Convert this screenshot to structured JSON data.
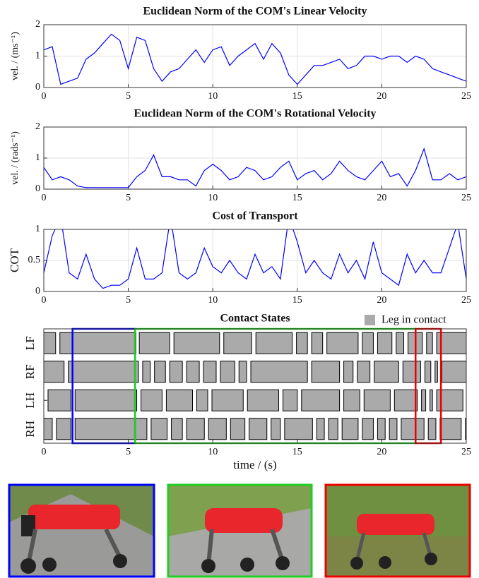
{
  "chart_data": [
    {
      "type": "line",
      "title": "Euclidean Norm of the COM's Linear Velocity",
      "y_label": "vel. / (ms⁻¹)",
      "color": "#0000ff",
      "grid": true,
      "xlim": [
        0,
        25
      ],
      "xticks": [
        0,
        5,
        10,
        15,
        20,
        25
      ],
      "ylim": [
        0,
        2
      ],
      "yticks": [
        0,
        1,
        2
      ],
      "x": [
        0,
        0.5,
        1,
        1.5,
        2,
        2.5,
        3,
        3.5,
        4,
        4.5,
        5,
        5.5,
        6,
        6.5,
        7,
        7.5,
        8,
        8.5,
        9,
        9.5,
        10,
        10.5,
        11,
        11.5,
        12,
        12.5,
        13,
        13.5,
        14,
        14.5,
        15,
        15.5,
        16,
        16.5,
        17,
        17.5,
        18,
        18.5,
        19,
        19.5,
        20,
        20.5,
        21,
        21.5,
        22,
        22.5,
        23,
        23.5,
        24,
        24.5,
        25
      ],
      "values": [
        1.2,
        1.3,
        0.1,
        0.2,
        0.3,
        0.9,
        1.1,
        1.4,
        1.7,
        1.5,
        0.6,
        1.6,
        1.5,
        0.6,
        0.2,
        0.5,
        0.6,
        0.9,
        1.2,
        0.8,
        1.2,
        1.3,
        0.7,
        1.0,
        1.2,
        1.4,
        0.9,
        1.4,
        1.1,
        0.4,
        0.1,
        0.4,
        0.7,
        0.7,
        0.8,
        0.9,
        0.6,
        0.7,
        1.0,
        1.0,
        0.9,
        1.0,
        1.0,
        0.8,
        1.0,
        0.9,
        0.6,
        0.5,
        0.4,
        0.3,
        0.2
      ]
    },
    {
      "type": "line",
      "title": "Euclidean Norm of the COM's Rotational Velocity",
      "y_label": "vel. / (rads⁻¹)",
      "color": "#0000ff",
      "grid": true,
      "xlim": [
        0,
        25
      ],
      "xticks": [
        0,
        5,
        10,
        15,
        20,
        25
      ],
      "ylim": [
        0,
        2
      ],
      "yticks": [
        0,
        1,
        2
      ],
      "x": [
        0,
        0.5,
        1,
        1.5,
        2,
        2.5,
        3,
        3.5,
        4,
        4.5,
        5,
        5.5,
        6,
        6.5,
        7,
        7.5,
        8,
        8.5,
        9,
        9.5,
        10,
        10.5,
        11,
        11.5,
        12,
        12.5,
        13,
        13.5,
        14,
        14.5,
        15,
        15.5,
        16,
        16.5,
        17,
        17.5,
        18,
        18.5,
        19,
        19.5,
        20,
        20.5,
        21,
        21.5,
        22,
        22.5,
        23,
        23.5,
        24,
        24.5,
        25
      ],
      "values": [
        0.7,
        0.3,
        0.4,
        0.3,
        0.1,
        0.05,
        0.05,
        0.05,
        0.05,
        0.05,
        0.05,
        0.4,
        0.6,
        1.1,
        0.4,
        0.4,
        0.3,
        0.3,
        0.1,
        0.6,
        0.8,
        0.6,
        0.3,
        0.4,
        0.7,
        0.6,
        0.3,
        0.4,
        0.7,
        0.9,
        0.3,
        0.5,
        0.6,
        0.3,
        0.5,
        0.9,
        0.6,
        0.4,
        0.3,
        0.6,
        0.9,
        0.4,
        0.5,
        0.1,
        0.6,
        1.3,
        0.3,
        0.3,
        0.5,
        0.3,
        0.4
      ]
    },
    {
      "type": "line",
      "title": "Cost of Transport",
      "y_label": "COT",
      "color": "#0000ff",
      "grid": true,
      "xlim": [
        0,
        25
      ],
      "xticks": [
        0,
        5,
        10,
        15,
        20,
        25
      ],
      "ylim": [
        0,
        1
      ],
      "yticks": [
        0,
        0.5,
        1
      ],
      "x": [
        0,
        0.5,
        1,
        1.5,
        2,
        2.5,
        3,
        3.5,
        4,
        4.5,
        5,
        5.5,
        6,
        6.5,
        7,
        7.5,
        8,
        8.5,
        9,
        9.5,
        10,
        10.5,
        11,
        11.5,
        12,
        12.5,
        13,
        13.5,
        14,
        14.5,
        15,
        15.5,
        16,
        16.5,
        17,
        17.5,
        18,
        18.5,
        19,
        19.5,
        20,
        20.5,
        21,
        21.5,
        22,
        22.5,
        23,
        23.5,
        24,
        24.5,
        25
      ],
      "values": [
        0.3,
        0.9,
        1.2,
        0.3,
        0.2,
        0.6,
        0.2,
        0.05,
        0.1,
        0.1,
        0.2,
        0.7,
        0.2,
        0.2,
        0.3,
        1.2,
        0.3,
        0.2,
        0.3,
        0.7,
        0.4,
        0.3,
        0.5,
        0.3,
        0.2,
        0.6,
        0.3,
        0.4,
        0.2,
        1.2,
        0.8,
        0.3,
        0.5,
        0.3,
        0.2,
        0.6,
        0.3,
        0.5,
        0.2,
        0.8,
        0.3,
        0.2,
        0.1,
        0.6,
        0.3,
        0.5,
        0.3,
        0.3,
        0.7,
        1.1,
        0.2
      ]
    },
    {
      "type": "gantt",
      "title": "Contact States",
      "x_label": "time / (s)",
      "legend_label": "Leg in contact",
      "color": "#aaaaaa",
      "xlim": [
        0,
        25
      ],
      "xticks": [
        0,
        5,
        10,
        15,
        20,
        25
      ],
      "categories": [
        "LF",
        "RF",
        "LH",
        "RH"
      ],
      "contacts": [
        [
          [
            0,
            0.7
          ],
          [
            0.95,
            5.45
          ],
          [
            5.65,
            7.45
          ],
          [
            7.7,
            10.4
          ],
          [
            10.65,
            12.3
          ],
          [
            12.55,
            14.7
          ],
          [
            14.95,
            15.6
          ],
          [
            15.85,
            16.5
          ],
          [
            16.75,
            18.6
          ],
          [
            18.85,
            19.5
          ],
          [
            19.75,
            20.6
          ],
          [
            20.85,
            21.3
          ],
          [
            21.55,
            22.4
          ],
          [
            22.65,
            23.0
          ],
          [
            23.25,
            25
          ]
        ],
        [
          [
            0,
            1.2
          ],
          [
            1.45,
            5.6
          ],
          [
            5.85,
            6.3
          ],
          [
            6.55,
            7.2
          ],
          [
            7.45,
            8.2
          ],
          [
            8.45,
            9.2
          ],
          [
            9.45,
            10.2
          ],
          [
            10.45,
            11.3
          ],
          [
            11.55,
            12.0
          ],
          [
            12.25,
            15.6
          ],
          [
            15.85,
            17.5
          ],
          [
            17.75,
            18.3
          ],
          [
            18.55,
            19.3
          ],
          [
            19.55,
            21.0
          ],
          [
            21.25,
            22.3
          ],
          [
            22.55,
            22.9
          ],
          [
            23.15,
            23.3
          ],
          [
            23.55,
            25
          ]
        ],
        [
          [
            0.25,
            1.6
          ],
          [
            1.85,
            5.5
          ],
          [
            5.75,
            7.0
          ],
          [
            7.25,
            8.8
          ],
          [
            9.05,
            9.7
          ],
          [
            9.95,
            11.8
          ],
          [
            12.05,
            13.9
          ],
          [
            14.15,
            15.0
          ],
          [
            15.25,
            17.5
          ],
          [
            17.75,
            18.7
          ],
          [
            18.95,
            20.5
          ],
          [
            20.75,
            22.1
          ],
          [
            22.35,
            22.6
          ],
          [
            22.85,
            23.0
          ],
          [
            23.25,
            24.8
          ]
        ],
        [
          [
            0,
            0.5
          ],
          [
            0.75,
            1.6
          ],
          [
            1.85,
            6.1
          ],
          [
            6.35,
            7.3
          ],
          [
            7.55,
            8.2
          ],
          [
            8.45,
            9.5
          ],
          [
            9.75,
            10.8
          ],
          [
            11.05,
            11.9
          ],
          [
            12.15,
            13.2
          ],
          [
            13.45,
            14.0
          ],
          [
            14.25,
            15.9
          ],
          [
            16.15,
            16.6
          ],
          [
            16.85,
            17.4
          ],
          [
            17.65,
            18.6
          ],
          [
            18.85,
            19.5
          ],
          [
            19.75,
            20.2
          ],
          [
            20.45,
            20.9
          ],
          [
            21.15,
            22.5
          ],
          [
            22.75,
            23.2
          ],
          [
            23.45,
            24.7
          ],
          [
            24.95,
            25
          ]
        ]
      ],
      "highlights": [
        {
          "start": 1.7,
          "end": 5.4,
          "color": "#0000ff"
        },
        {
          "start": 5.4,
          "end": 22.0,
          "color": "#22cc22"
        },
        {
          "start": 22.0,
          "end": 23.5,
          "color": "#ee0000"
        }
      ]
    }
  ]
}
